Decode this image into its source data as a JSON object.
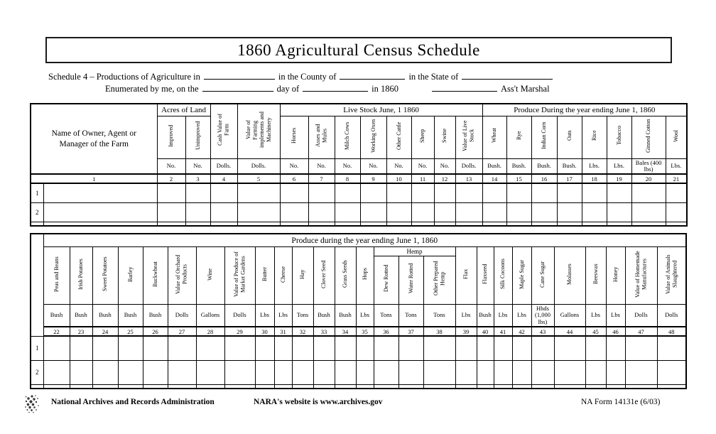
{
  "title": "1860 Agricultural Census Schedule",
  "header_lines": {
    "line1_a": "Schedule 4 – Productions of Agriculture in",
    "line1_b": "in the County of",
    "line1_c": "in the State of",
    "line2_a": "Enumerated by me, on the",
    "line2_b": "day of",
    "line2_c": "in 1860",
    "line2_d": "Ass't Marshal"
  },
  "table1": {
    "name_header": "Name of Owner, Agent or Manager of the Farm",
    "name_col_num": "1",
    "groups": {
      "acres": "Acres of Land",
      "livestock": "Live Stock June, 1 1860",
      "produce": "Produce During the year ending June 1, 1860"
    },
    "columns": [
      {
        "label": "Improved",
        "unit": "No.",
        "num": "2"
      },
      {
        "label": "Unimproved",
        "unit": "No.",
        "num": "3"
      },
      {
        "label": "Cash Value of Farm",
        "unit": "Dolls.",
        "num": "4"
      },
      {
        "label": "Value of Farming implements and Machinery",
        "unit": "Dolls.",
        "num": "5"
      },
      {
        "label": "Horses",
        "unit": "No.",
        "num": "6"
      },
      {
        "label": "Asses and Mules",
        "unit": "No.",
        "num": "7"
      },
      {
        "label": "Milch Cows",
        "unit": "No.",
        "num": "8"
      },
      {
        "label": "Working Oxen",
        "unit": "No.",
        "num": "9"
      },
      {
        "label": "Other Cattle",
        "unit": "No.",
        "num": "10"
      },
      {
        "label": "Sheep",
        "unit": "No.",
        "num": "11"
      },
      {
        "label": "Swine",
        "unit": "No.",
        "num": "12"
      },
      {
        "label": "Value of Live Stock",
        "unit": "Dolls.",
        "num": "13"
      },
      {
        "label": "Wheat",
        "unit": "Bush.",
        "num": "14"
      },
      {
        "label": "Rye",
        "unit": "Bush.",
        "num": "15"
      },
      {
        "label": "Indian Corn",
        "unit": "Bush.",
        "num": "16"
      },
      {
        "label": "Oats",
        "unit": "Bush.",
        "num": "17"
      },
      {
        "label": "Rice",
        "unit": "Lbs.",
        "num": "18"
      },
      {
        "label": "Tobacco",
        "unit": "Lbs.",
        "num": "19"
      },
      {
        "label": "Ginned Cotton",
        "unit": "Bales (400 lbs)",
        "num": "20"
      },
      {
        "label": "Wool",
        "unit": "Lbs.",
        "num": "21"
      }
    ],
    "row_numbers": [
      "1",
      "2"
    ]
  },
  "table2": {
    "group": "Produce during the year ending June 1, 1860",
    "hemp_group": "Hemp",
    "columns": [
      {
        "label": "Peas and Beans",
        "unit": "Bush",
        "num": "22"
      },
      {
        "label": "Irish Potatoes",
        "unit": "Bush",
        "num": "23"
      },
      {
        "label": "Sweet Potatoes",
        "unit": "Bush",
        "num": "24"
      },
      {
        "label": "Barley",
        "unit": "Bush",
        "num": "25"
      },
      {
        "label": "Buckwheat",
        "unit": "Bush",
        "num": "26"
      },
      {
        "label": "Value of Orchard Products",
        "unit": "Dolls",
        "num": "27"
      },
      {
        "label": "Wine",
        "unit": "Gallons",
        "num": "28"
      },
      {
        "label": "Value of Produce of Market Gardens",
        "unit": "Dolls",
        "num": "29"
      },
      {
        "label": "Butter",
        "unit": "Lbs",
        "num": "30"
      },
      {
        "label": "Cheese",
        "unit": "Lbs",
        "num": "31"
      },
      {
        "label": "Hay",
        "unit": "Tons",
        "num": "32"
      },
      {
        "label": "Clover Seed",
        "unit": "Bush",
        "num": "33"
      },
      {
        "label": "Grass Seeds",
        "unit": "Bush",
        "num": "34"
      },
      {
        "label": "Hops",
        "unit": "Lbs",
        "num": "35"
      },
      {
        "label": "Dew Rotted",
        "unit": "Tons",
        "num": "36"
      },
      {
        "label": "Water Rotted",
        "unit": "Tons",
        "num": "37"
      },
      {
        "label": "Other Prepared Hemp",
        "unit": "Tons",
        "num": "38"
      },
      {
        "label": "Flax",
        "unit": "Lbs",
        "num": "39"
      },
      {
        "label": "Flaxseed",
        "unit": "Bush",
        "num": "40"
      },
      {
        "label": "Silk Cocoons",
        "unit": "Lbs",
        "num": "41"
      },
      {
        "label": "Maple Sugar",
        "unit": "Lbs",
        "num": "42"
      },
      {
        "label": "Cane Sugar",
        "unit": "Hhds (1,000 lbs)",
        "num": "43"
      },
      {
        "label": "Molasses",
        "unit": "Gallons",
        "num": "44"
      },
      {
        "label": "Beeswax",
        "unit": "Lbs",
        "num": "45"
      },
      {
        "label": "Honey",
        "unit": "Lbs",
        "num": "46"
      },
      {
        "label": "Value of Homemade Manufactures",
        "unit": "Dolls",
        "num": "47"
      },
      {
        "label": "Value of Animals Slaughtered",
        "unit": "Dolls",
        "num": "48"
      }
    ],
    "row_numbers": [
      "1",
      "2"
    ]
  },
  "footer": {
    "org": "National Archives and Records Administration",
    "website": "NARA's website is www.archives.gov",
    "form_number": "NA Form 14131e (6/03)"
  }
}
